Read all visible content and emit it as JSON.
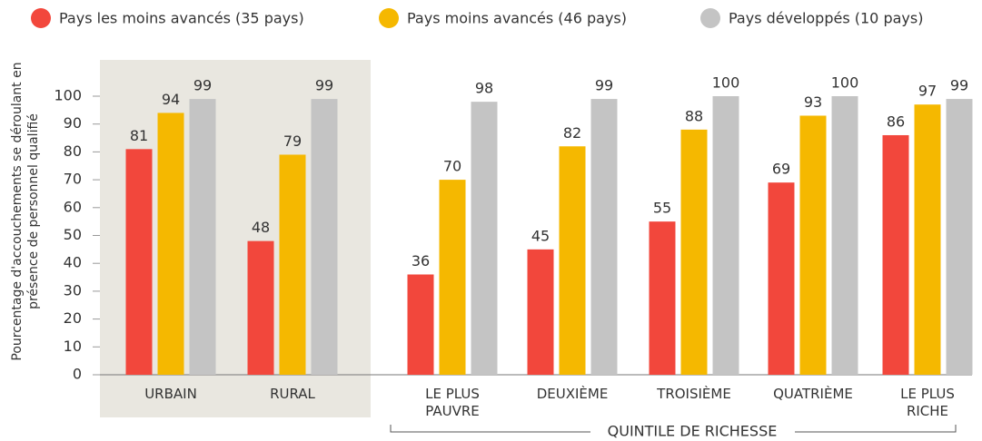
{
  "chart_data": {
    "type": "bar",
    "y_label": "Pourcentage d'accouchements se déroulant en présence de personnel qualifié",
    "annotation": "QUINTILE DE RICHESSE",
    "categories": [
      "URBAIN",
      "RURAL",
      "LE PLUS PAUVRE",
      "DEUXIÈME",
      "TROISIÈME",
      "QUATRIÈME",
      "LE PLUS RICHE"
    ],
    "series": [
      {
        "name": "Pays les moins avancés (35 pays)",
        "color": "#f2473c",
        "values": [
          81,
          48,
          36,
          45,
          55,
          69,
          86
        ]
      },
      {
        "name": "Pays moins avancés (46 pays)",
        "color": "#f5b800",
        "values": [
          94,
          79,
          70,
          82,
          88,
          93,
          97
        ]
      },
      {
        "name": "Pays développés (10 pays)",
        "color": "#c4c4c4",
        "values": [
          99,
          99,
          98,
          99,
          100,
          100,
          99
        ]
      }
    ],
    "ylim": [
      0,
      100
    ],
    "yticks": [
      0,
      10,
      20,
      30,
      40,
      50,
      60,
      70,
      80,
      90,
      100
    ],
    "grid": false
  }
}
